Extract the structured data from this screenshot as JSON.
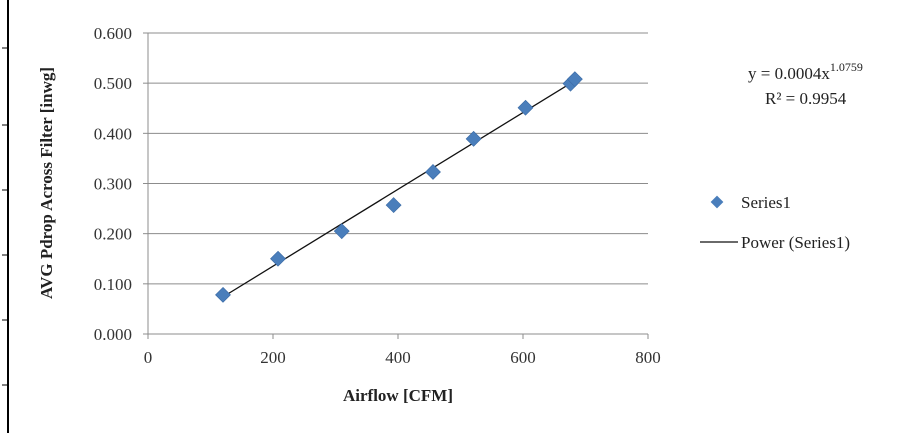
{
  "chart_data": {
    "type": "scatter",
    "xlabel": "Airflow [CFM]",
    "ylabel": "AVG Pdrop Across Filter [inwg]",
    "xlim": [
      0,
      800
    ],
    "ylim": [
      0,
      0.6
    ],
    "x_ticks": [
      "0",
      "200",
      "400",
      "600",
      "800"
    ],
    "y_ticks": [
      "0.000",
      "0.100",
      "0.200",
      "0.300",
      "0.400",
      "0.500",
      "0.600"
    ],
    "grid": true,
    "legend_position": "right",
    "series": [
      {
        "name": "Series1",
        "color": "#4a7ebb",
        "marker": "diamond",
        "points": [
          {
            "x": 120,
            "y": 0.078
          },
          {
            "x": 208,
            "y": 0.15
          },
          {
            "x": 310,
            "y": 0.205
          },
          {
            "x": 393,
            "y": 0.257
          },
          {
            "x": 456,
            "y": 0.323
          },
          {
            "x": 521,
            "y": 0.389
          },
          {
            "x": 604,
            "y": 0.451
          },
          {
            "x": 676,
            "y": 0.499
          },
          {
            "x": 683,
            "y": 0.508
          }
        ]
      }
    ],
    "trendline": {
      "name": "Power (Series1)",
      "color": "#111111",
      "type": "power",
      "x_range": [
        120,
        683
      ],
      "y_range": [
        0.074,
        0.505
      ]
    },
    "equation": {
      "base": "y = 0.0004x",
      "exponent": "1.0759",
      "r_squared": "R² = 0.9954"
    }
  }
}
